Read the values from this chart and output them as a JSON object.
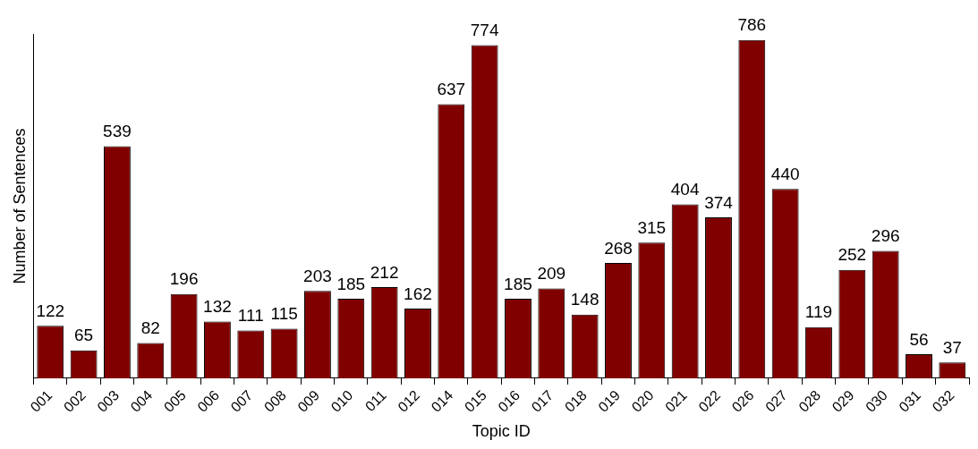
{
  "chart_data": {
    "type": "bar",
    "xlabel": "Topic ID",
    "ylabel": "Number of Sentences",
    "categories": [
      "001",
      "002",
      "003",
      "004",
      "005",
      "006",
      "007",
      "008",
      "009",
      "010",
      "011",
      "012",
      "014",
      "015",
      "016",
      "017",
      "018",
      "019",
      "020",
      "021",
      "022",
      "026",
      "027",
      "028",
      "029",
      "030",
      "031",
      "032"
    ],
    "values": [
      122,
      65,
      539,
      82,
      196,
      132,
      111,
      115,
      203,
      185,
      212,
      162,
      637,
      774,
      185,
      209,
      148,
      268,
      315,
      404,
      374,
      786,
      440,
      119,
      252,
      296,
      56,
      37
    ],
    "color": "#800000",
    "ylim": [
      0,
      800
    ],
    "tick_labels": "x",
    "data_labels": true,
    "grid": false,
    "legend": false
  }
}
